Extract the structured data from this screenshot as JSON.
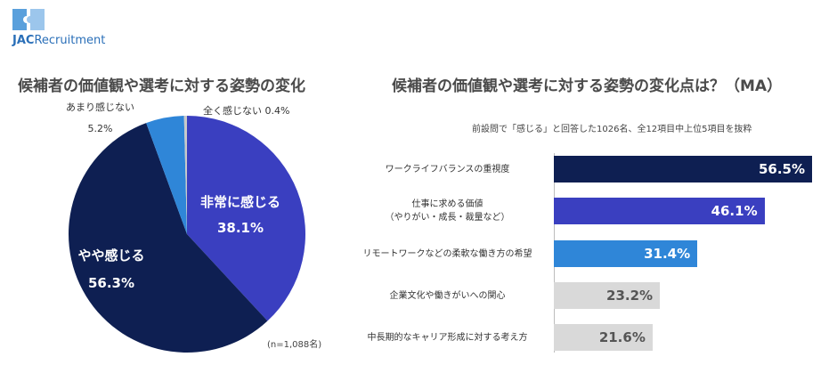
{
  "brand": {
    "part1": "JAC",
    "part2": "Recruitment"
  },
  "chart_data": [
    {
      "type": "pie",
      "title": "候補者の価値観や選考に対する姿勢の変化",
      "note": "(n=1,088名)",
      "slices": [
        {
          "label": "非常に感じる",
          "value_label": "38.1%",
          "value": 38.1,
          "color": "#3a3fc0"
        },
        {
          "label": "やや感じる",
          "value_label": "56.3%",
          "value": 56.3,
          "color": "#0e1f52"
        },
        {
          "label": "あまり感じない",
          "value_label": "5.2%",
          "value": 5.2,
          "color": "#2f86d8"
        },
        {
          "label": "全く感じない",
          "value_label": "0.4%",
          "value": 0.4,
          "color": "#c9c9c9"
        }
      ],
      "outside_labels": {
        "not_much": {
          "label": "あまり感じない",
          "value": "5.2%"
        },
        "not_at_all": {
          "text": "全く感じない 0.4%"
        }
      }
    },
    {
      "type": "bar",
      "orientation": "horizontal",
      "title": "候補者の価値観や選考に対する姿勢の変化点は？（MA）",
      "subtitle": "前設問で「感じる」と回答した1026名、全12項目中上位5項目を抜粋",
      "xlim": [
        0,
        60
      ],
      "items": [
        {
          "lines": [
            "ワークライフバランスの重視度"
          ],
          "value": 56.5,
          "value_label": "56.5%",
          "color": "#0e1f52",
          "text_color": "#ffffff"
        },
        {
          "lines": [
            "仕事に求める価値",
            "（やりがい・成長・裁量など）"
          ],
          "value": 46.1,
          "value_label": "46.1%",
          "color": "#3a3fc0",
          "text_color": "#ffffff"
        },
        {
          "lines": [
            "リモートワークなどの柔軟な働き方の希望"
          ],
          "value": 31.4,
          "value_label": "31.4%",
          "color": "#2f86d8",
          "text_color": "#ffffff"
        },
        {
          "lines": [
            "企業文化や働きがいへの関心"
          ],
          "value": 23.2,
          "value_label": "23.2%",
          "color": "#d9d9d9",
          "text_color": "#555555"
        },
        {
          "lines": [
            "中長期的なキャリア形成に対する考え方"
          ],
          "value": 21.6,
          "value_label": "21.6%",
          "color": "#d9d9d9",
          "text_color": "#555555"
        }
      ]
    }
  ]
}
